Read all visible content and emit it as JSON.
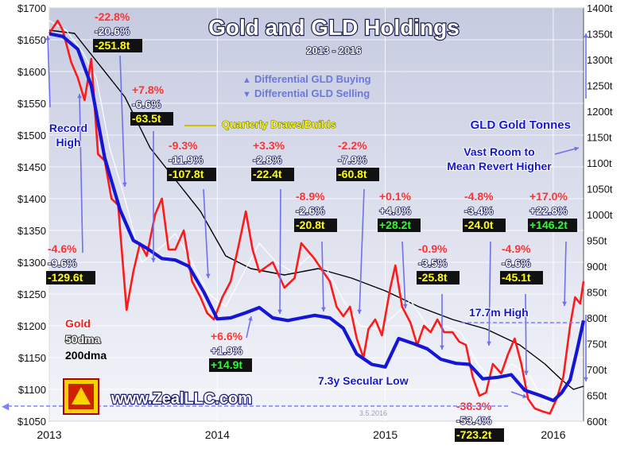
{
  "title": "Gold and GLD Holdings",
  "subtitle": "2013 - 2016",
  "colors": {
    "gold": "#ff1a1a",
    "gld": "#1515d8",
    "dma50": "#ffffff",
    "dma200": "#000000",
    "bg_top": "#c6cbe0",
    "bg_bottom": "#f4f5fa"
  },
  "legend": {
    "gold": "Gold",
    "dma50": "50dma",
    "dma200": "200dma",
    "right_title": "GLD Gold Tonnes"
  },
  "arrow_legend": {
    "buying": "Differential GLD Buying",
    "selling": "Differential GLD Selling"
  },
  "notes": {
    "quarterly": "Quarterly Draws/Builds",
    "record_high": "Record High",
    "vast_room": "Vast Room to Mean Revert Higher",
    "high_177": "17.7m High",
    "secular_low": "7.3y Secular Low",
    "website": "www.ZealLLC.com",
    "watermark": "3.5.2016"
  },
  "chart_data": {
    "type": "line",
    "title": "Gold and GLD Holdings",
    "subtitle": "2013 - 2016",
    "x_ticks": [
      "2013",
      "2014",
      "2015",
      "2016"
    ],
    "x_range": [
      2013.0,
      2016.18
    ],
    "y_left": {
      "label": "Gold ($)",
      "range": [
        1050,
        1700
      ],
      "ticks": [
        "$1050",
        "$1100",
        "$1150",
        "$1200",
        "$1250",
        "$1300",
        "$1350",
        "$1400",
        "$1450",
        "$1500",
        "$1550",
        "$1600",
        "$1650",
        "$1700"
      ]
    },
    "y_right": {
      "label": "GLD Gold Tonnes",
      "range": [
        600,
        1400
      ],
      "ticks": [
        "600t",
        "650t",
        "700t",
        "750t",
        "800t",
        "850t",
        "900t",
        "950t",
        "1000t",
        "1050t",
        "1100t",
        "1150t",
        "1200t",
        "1250t",
        "1300t",
        "1350t",
        "1400t"
      ]
    },
    "grid": true,
    "series": [
      {
        "name": "Gold",
        "axis": "left",
        "color": "#ff1a1a",
        "points": [
          [
            2013.0,
            1660
          ],
          [
            2013.05,
            1680
          ],
          [
            2013.08,
            1665
          ],
          [
            2013.13,
            1615
          ],
          [
            2013.17,
            1590
          ],
          [
            2013.21,
            1555
          ],
          [
            2013.25,
            1620
          ],
          [
            2013.29,
            1470
          ],
          [
            2013.33,
            1460
          ],
          [
            2013.37,
            1400
          ],
          [
            2013.41,
            1390
          ],
          [
            2013.46,
            1225
          ],
          [
            2013.5,
            1285
          ],
          [
            2013.54,
            1330
          ],
          [
            2013.58,
            1310
          ],
          [
            2013.63,
            1375
          ],
          [
            2013.67,
            1400
          ],
          [
            2013.71,
            1320
          ],
          [
            2013.75,
            1320
          ],
          [
            2013.8,
            1350
          ],
          [
            2013.85,
            1270
          ],
          [
            2013.9,
            1245
          ],
          [
            2013.94,
            1220
          ],
          [
            2013.98,
            1210
          ],
          [
            2014.03,
            1245
          ],
          [
            2014.08,
            1270
          ],
          [
            2014.13,
            1330
          ],
          [
            2014.17,
            1380
          ],
          [
            2014.21,
            1320
          ],
          [
            2014.25,
            1285
          ],
          [
            2014.33,
            1300
          ],
          [
            2014.4,
            1260
          ],
          [
            2014.46,
            1275
          ],
          [
            2014.5,
            1330
          ],
          [
            2014.58,
            1305
          ],
          [
            2014.63,
            1285
          ],
          [
            2014.67,
            1270
          ],
          [
            2014.71,
            1230
          ],
          [
            2014.75,
            1215
          ],
          [
            2014.79,
            1230
          ],
          [
            2014.83,
            1180
          ],
          [
            2014.87,
            1150
          ],
          [
            2014.9,
            1195
          ],
          [
            2014.94,
            1210
          ],
          [
            2014.98,
            1185
          ],
          [
            2015.03,
            1260
          ],
          [
            2015.06,
            1295
          ],
          [
            2015.1,
            1230
          ],
          [
            2015.15,
            1205
          ],
          [
            2015.19,
            1170
          ],
          [
            2015.23,
            1200
          ],
          [
            2015.27,
            1190
          ],
          [
            2015.31,
            1210
          ],
          [
            2015.35,
            1190
          ],
          [
            2015.4,
            1190
          ],
          [
            2015.44,
            1175
          ],
          [
            2015.48,
            1170
          ],
          [
            2015.52,
            1120
          ],
          [
            2015.56,
            1090
          ],
          [
            2015.6,
            1095
          ],
          [
            2015.64,
            1140
          ],
          [
            2015.69,
            1125
          ],
          [
            2015.73,
            1155
          ],
          [
            2015.77,
            1180
          ],
          [
            2015.81,
            1140
          ],
          [
            2015.85,
            1085
          ],
          [
            2015.89,
            1070
          ],
          [
            2015.94,
            1065
          ],
          [
            2015.98,
            1062
          ],
          [
            2016.02,
            1085
          ],
          [
            2016.06,
            1120
          ],
          [
            2016.1,
            1200
          ],
          [
            2016.13,
            1245
          ],
          [
            2016.16,
            1235
          ],
          [
            2016.18,
            1270
          ]
        ]
      },
      {
        "name": "50dma",
        "axis": "left",
        "color": "#ffffff",
        "points": [
          [
            2013.0,
            1680
          ],
          [
            2013.1,
            1665
          ],
          [
            2013.2,
            1630
          ],
          [
            2013.28,
            1590
          ],
          [
            2013.36,
            1480
          ],
          [
            2013.45,
            1400
          ],
          [
            2013.55,
            1300
          ],
          [
            2013.65,
            1320
          ],
          [
            2013.75,
            1345
          ],
          [
            2013.85,
            1300
          ],
          [
            2013.95,
            1250
          ],
          [
            2014.05,
            1230
          ],
          [
            2014.15,
            1280
          ],
          [
            2014.25,
            1330
          ],
          [
            2014.35,
            1300
          ],
          [
            2014.45,
            1285
          ],
          [
            2014.55,
            1310
          ],
          [
            2014.65,
            1290
          ],
          [
            2014.75,
            1240
          ],
          [
            2014.85,
            1200
          ],
          [
            2014.95,
            1195
          ],
          [
            2015.05,
            1215
          ],
          [
            2015.15,
            1240
          ],
          [
            2015.25,
            1200
          ],
          [
            2015.35,
            1200
          ],
          [
            2015.45,
            1190
          ],
          [
            2015.55,
            1140
          ],
          [
            2015.65,
            1110
          ],
          [
            2015.75,
            1140
          ],
          [
            2015.85,
            1125
          ],
          [
            2015.95,
            1080
          ],
          [
            2016.05,
            1085
          ],
          [
            2016.15,
            1170
          ]
        ]
      },
      {
        "name": "200dma",
        "axis": "left",
        "color": "#000000",
        "points": [
          [
            2013.0,
            1665
          ],
          [
            2013.15,
            1660
          ],
          [
            2013.3,
            1610
          ],
          [
            2013.45,
            1560
          ],
          [
            2013.6,
            1480
          ],
          [
            2013.75,
            1430
          ],
          [
            2013.9,
            1380
          ],
          [
            2014.05,
            1310
          ],
          [
            2014.2,
            1290
          ],
          [
            2014.4,
            1280
          ],
          [
            2014.6,
            1290
          ],
          [
            2014.8,
            1275
          ],
          [
            2015.0,
            1255
          ],
          [
            2015.2,
            1230
          ],
          [
            2015.4,
            1210
          ],
          [
            2015.6,
            1195
          ],
          [
            2015.8,
            1170
          ],
          [
            2015.95,
            1140
          ],
          [
            2016.05,
            1115
          ],
          [
            2016.12,
            1100
          ],
          [
            2016.18,
            1105
          ]
        ]
      },
      {
        "name": "GLD Gold Tonnes",
        "axis": "right",
        "color": "#1515d8",
        "points": [
          [
            2013.0,
            1350
          ],
          [
            2013.08,
            1345
          ],
          [
            2013.17,
            1320
          ],
          [
            2013.25,
            1250
          ],
          [
            2013.33,
            1110
          ],
          [
            2013.42,
            1010
          ],
          [
            2013.5,
            950
          ],
          [
            2013.58,
            935
          ],
          [
            2013.67,
            915
          ],
          [
            2013.75,
            912
          ],
          [
            2013.83,
            900
          ],
          [
            2013.92,
            850
          ],
          [
            2014.0,
            798
          ],
          [
            2014.08,
            800
          ],
          [
            2014.17,
            810
          ],
          [
            2014.25,
            820
          ],
          [
            2014.33,
            800
          ],
          [
            2014.42,
            795
          ],
          [
            2014.5,
            800
          ],
          [
            2014.58,
            805
          ],
          [
            2014.67,
            800
          ],
          [
            2014.75,
            780
          ],
          [
            2014.83,
            730
          ],
          [
            2014.92,
            710
          ],
          [
            2015.0,
            705
          ],
          [
            2015.08,
            760
          ],
          [
            2015.17,
            750
          ],
          [
            2015.25,
            740
          ],
          [
            2015.33,
            720
          ],
          [
            2015.42,
            712
          ],
          [
            2015.5,
            710
          ],
          [
            2015.58,
            682
          ],
          [
            2015.67,
            685
          ],
          [
            2015.75,
            690
          ],
          [
            2015.83,
            660
          ],
          [
            2015.92,
            650
          ],
          [
            2016.0,
            640
          ],
          [
            2016.05,
            655
          ],
          [
            2016.1,
            680
          ],
          [
            2016.14,
            735
          ],
          [
            2016.18,
            795
          ]
        ]
      }
    ],
    "annotations": [
      {
        "label": "r1",
        "lines": [
          "-22.8%",
          "-20.6%",
          "-251.8t"
        ]
      },
      {
        "label": "r2",
        "lines": [
          "+7.8%",
          "-6.6%",
          "-63.5t"
        ]
      },
      {
        "label": "r3",
        "lines": [
          "-4.6%",
          "-9.6%",
          "-129.6t"
        ]
      },
      {
        "label": "r4",
        "lines": [
          "-9.3%",
          "-11.9%",
          "-107.8t"
        ]
      },
      {
        "label": "r5",
        "lines": [
          "+3.3%",
          "-2.8%",
          "-22.4t"
        ]
      },
      {
        "label": "r6",
        "lines": [
          "-2.2%",
          "-7.9%",
          "-60.8t"
        ]
      },
      {
        "label": "r7",
        "lines": [
          "-8.9%",
          "-2.6%",
          "-20.8t"
        ]
      },
      {
        "label": "r8",
        "lines": [
          "+0.1%",
          "+4.0%",
          "+28.2t"
        ]
      },
      {
        "label": "r9",
        "lines": [
          "-4.8%",
          "-3.4%",
          "-24.0t"
        ]
      },
      {
        "label": "r10",
        "lines": [
          "+17.0%",
          "+22.8%",
          "+146.2t"
        ]
      },
      {
        "label": "r11",
        "lines": [
          "-0.9%",
          "-3.5%",
          "-25.8t"
        ]
      },
      {
        "label": "r12",
        "lines": [
          "-4.9%",
          "-6.6%",
          "-45.1t"
        ]
      },
      {
        "label": "r13",
        "lines": [
          "+6.6%",
          "+1.9%",
          "+14.9t"
        ]
      },
      {
        "label": "r14",
        "lines": [
          "-38.3%",
          "-53.4%",
          "-723.2t"
        ]
      }
    ]
  }
}
